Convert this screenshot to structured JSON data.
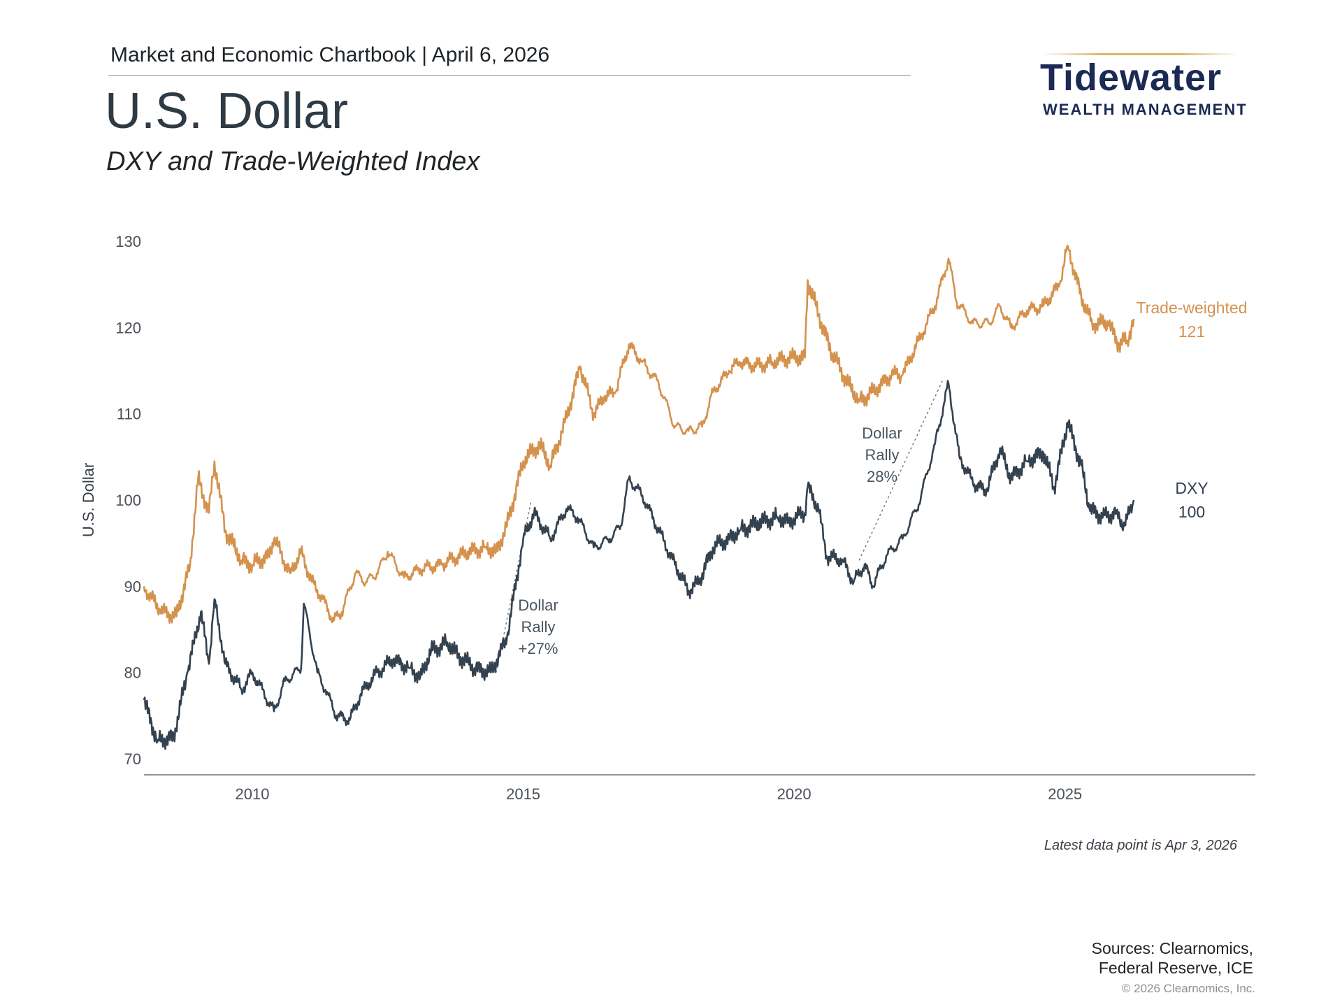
{
  "header": {
    "chartbook": "Market and Economic Chartbook | April 6, 2026",
    "title": "U.S. Dollar",
    "subtitle": "DXY and Trade-Weighted Index"
  },
  "logo": {
    "name": "Tidewater",
    "tagline": "WEALTH MANAGEMENT",
    "colors": {
      "text": "#1b2a55",
      "accent": "#d9b86a"
    }
  },
  "chart_data": {
    "type": "line",
    "title": "",
    "xlabel": "",
    "ylabel": "U.S. Dollar",
    "xlim": [
      2008.0,
      2028.5
    ],
    "ylim": [
      70,
      130
    ],
    "x_ticks": [
      2010,
      2015,
      2020,
      2025
    ],
    "x_tick_labels": [
      "2010",
      "2015",
      "2020",
      "2025"
    ],
    "y_ticks": [
      70,
      80,
      90,
      100,
      110,
      120,
      130
    ],
    "y_tick_labels": [
      "70",
      "80",
      "90",
      "100",
      "110",
      "120",
      "130"
    ],
    "grid": false,
    "series": [
      {
        "name": "Trade-weighted",
        "end_label": "121",
        "color": "#d4924d",
        "points": [
          [
            2008.0,
            90.0
          ],
          [
            2008.3,
            87.2
          ],
          [
            2008.6,
            86.5
          ],
          [
            2008.85,
            92.5
          ],
          [
            2009.0,
            102.5
          ],
          [
            2009.2,
            98.5
          ],
          [
            2009.3,
            104.5
          ],
          [
            2009.5,
            96.5
          ],
          [
            2009.8,
            93.0
          ],
          [
            2010.0,
            92.5
          ],
          [
            2010.3,
            93.5
          ],
          [
            2010.4,
            95.5
          ],
          [
            2010.7,
            91.5
          ],
          [
            2010.9,
            94.0
          ],
          [
            2011.1,
            90.5
          ],
          [
            2011.3,
            88.5
          ],
          [
            2011.5,
            86.0
          ],
          [
            2011.65,
            87.0
          ],
          [
            2011.9,
            91.5
          ],
          [
            2012.1,
            90.5
          ],
          [
            2012.3,
            91.5
          ],
          [
            2012.5,
            94.0
          ],
          [
            2012.8,
            91.0
          ],
          [
            2013.1,
            92.0
          ],
          [
            2013.5,
            92.5
          ],
          [
            2013.8,
            93.5
          ],
          [
            2014.0,
            94.0
          ],
          [
            2014.3,
            94.5
          ],
          [
            2014.5,
            94.0
          ],
          [
            2014.7,
            97.0
          ],
          [
            2015.0,
            104.5
          ],
          [
            2015.3,
            106.5
          ],
          [
            2015.5,
            104.0
          ],
          [
            2015.8,
            109.5
          ],
          [
            2016.05,
            115.5
          ],
          [
            2016.3,
            110.0
          ],
          [
            2016.5,
            112.0
          ],
          [
            2016.7,
            112.5
          ],
          [
            2016.95,
            118.0
          ],
          [
            2017.2,
            116.0
          ],
          [
            2017.5,
            113.5
          ],
          [
            2017.8,
            108.5
          ],
          [
            2018.05,
            108.0
          ],
          [
            2018.3,
            108.5
          ],
          [
            2018.5,
            112.5
          ],
          [
            2018.8,
            115.0
          ],
          [
            2019.0,
            116.0
          ],
          [
            2019.3,
            115.5
          ],
          [
            2019.6,
            116.0
          ],
          [
            2019.9,
            116.5
          ],
          [
            2020.2,
            116.5
          ],
          [
            2020.25,
            125.5
          ],
          [
            2020.45,
            121.5
          ],
          [
            2020.7,
            117.0
          ],
          [
            2021.0,
            113.5
          ],
          [
            2021.2,
            111.5
          ],
          [
            2021.45,
            112.5
          ],
          [
            2021.8,
            114.5
          ],
          [
            2022.0,
            114.5
          ],
          [
            2022.3,
            118.5
          ],
          [
            2022.6,
            122.5
          ],
          [
            2022.85,
            128.0
          ],
          [
            2023.0,
            123.0
          ],
          [
            2023.3,
            120.5
          ],
          [
            2023.6,
            120.5
          ],
          [
            2023.8,
            122.5
          ],
          [
            2024.0,
            120.0
          ],
          [
            2024.3,
            122.0
          ],
          [
            2024.6,
            122.5
          ],
          [
            2024.9,
            125.0
          ],
          [
            2025.05,
            129.5
          ],
          [
            2025.3,
            123.5
          ],
          [
            2025.5,
            120.5
          ],
          [
            2025.8,
            120.5
          ],
          [
            2026.0,
            118.0
          ],
          [
            2026.15,
            118.5
          ],
          [
            2026.27,
            121.0
          ]
        ]
      },
      {
        "name": "DXY",
        "end_label": "100",
        "color": "#34414e",
        "points": [
          [
            2008.0,
            76.8
          ],
          [
            2008.25,
            72.0
          ],
          [
            2008.55,
            72.5
          ],
          [
            2008.8,
            80.0
          ],
          [
            2009.05,
            87.0
          ],
          [
            2009.2,
            81.0
          ],
          [
            2009.3,
            88.5
          ],
          [
            2009.5,
            81.0
          ],
          [
            2009.8,
            78.0
          ],
          [
            2010.0,
            80.0
          ],
          [
            2010.4,
            75.5
          ],
          [
            2010.6,
            79.0
          ],
          [
            2010.9,
            80.5
          ],
          [
            2010.95,
            88.0
          ],
          [
            2011.2,
            80.0
          ],
          [
            2011.35,
            78.0
          ],
          [
            2011.55,
            75.0
          ],
          [
            2011.8,
            74.5
          ],
          [
            2012.0,
            77.5
          ],
          [
            2012.3,
            80.0
          ],
          [
            2012.6,
            81.5
          ],
          [
            2012.9,
            80.5
          ],
          [
            2013.1,
            79.5
          ],
          [
            2013.3,
            82.5
          ],
          [
            2013.6,
            83.5
          ],
          [
            2013.8,
            82.0
          ],
          [
            2014.1,
            80.5
          ],
          [
            2014.4,
            80.0
          ],
          [
            2014.7,
            84.0
          ],
          [
            2015.0,
            95.5
          ],
          [
            2015.2,
            98.5
          ],
          [
            2015.5,
            95.5
          ],
          [
            2015.8,
            99.0
          ],
          [
            2016.0,
            98.0
          ],
          [
            2016.3,
            94.5
          ],
          [
            2016.6,
            95.5
          ],
          [
            2016.8,
            97.0
          ],
          [
            2016.95,
            102.5
          ],
          [
            2017.2,
            100.5
          ],
          [
            2017.5,
            96.5
          ],
          [
            2017.8,
            92.5
          ],
          [
            2018.05,
            89.5
          ],
          [
            2018.25,
            90.5
          ],
          [
            2018.5,
            94.5
          ],
          [
            2018.8,
            95.5
          ],
          [
            2019.0,
            96.5
          ],
          [
            2019.4,
            97.5
          ],
          [
            2019.7,
            98.0
          ],
          [
            2019.9,
            97.5
          ],
          [
            2020.2,
            98.5
          ],
          [
            2020.25,
            101.5
          ],
          [
            2020.45,
            99.0
          ],
          [
            2020.6,
            93.5
          ],
          [
            2020.9,
            93.0
          ],
          [
            2021.1,
            90.5
          ],
          [
            2021.3,
            92.5
          ],
          [
            2021.45,
            90.0
          ],
          [
            2021.7,
            93.5
          ],
          [
            2022.0,
            95.5
          ],
          [
            2022.3,
            99.5
          ],
          [
            2022.6,
            106.5
          ],
          [
            2022.85,
            113.5
          ],
          [
            2023.05,
            105.0
          ],
          [
            2023.3,
            102.0
          ],
          [
            2023.55,
            101.0
          ],
          [
            2023.8,
            106.0
          ],
          [
            2024.0,
            102.5
          ],
          [
            2024.3,
            104.5
          ],
          [
            2024.6,
            105.5
          ],
          [
            2024.8,
            101.5
          ],
          [
            2025.05,
            109.0
          ],
          [
            2025.3,
            104.0
          ],
          [
            2025.45,
            99.0
          ],
          [
            2025.7,
            98.0
          ],
          [
            2025.95,
            98.5
          ],
          [
            2026.1,
            97.0
          ],
          [
            2026.27,
            100.0
          ]
        ]
      }
    ],
    "annotations": [
      {
        "lines": [
          "Dollar",
          "Rally",
          "+27%"
        ],
        "from": [
          2014.5,
          80.0
        ],
        "to": [
          2015.15,
          100.0
        ]
      },
      {
        "lines": [
          "Dollar",
          "Rally",
          "28%"
        ],
        "from": [
          2021.2,
          93.0
        ],
        "to": [
          2022.75,
          114.0
        ]
      }
    ],
    "footnote": "Latest data point is Apr 3, 2026"
  },
  "footer": {
    "sources_line1": "Sources: Clearnomics,",
    "sources_line2": "Federal Reserve, ICE",
    "copyright": "© 2026 Clearnomics, Inc."
  }
}
